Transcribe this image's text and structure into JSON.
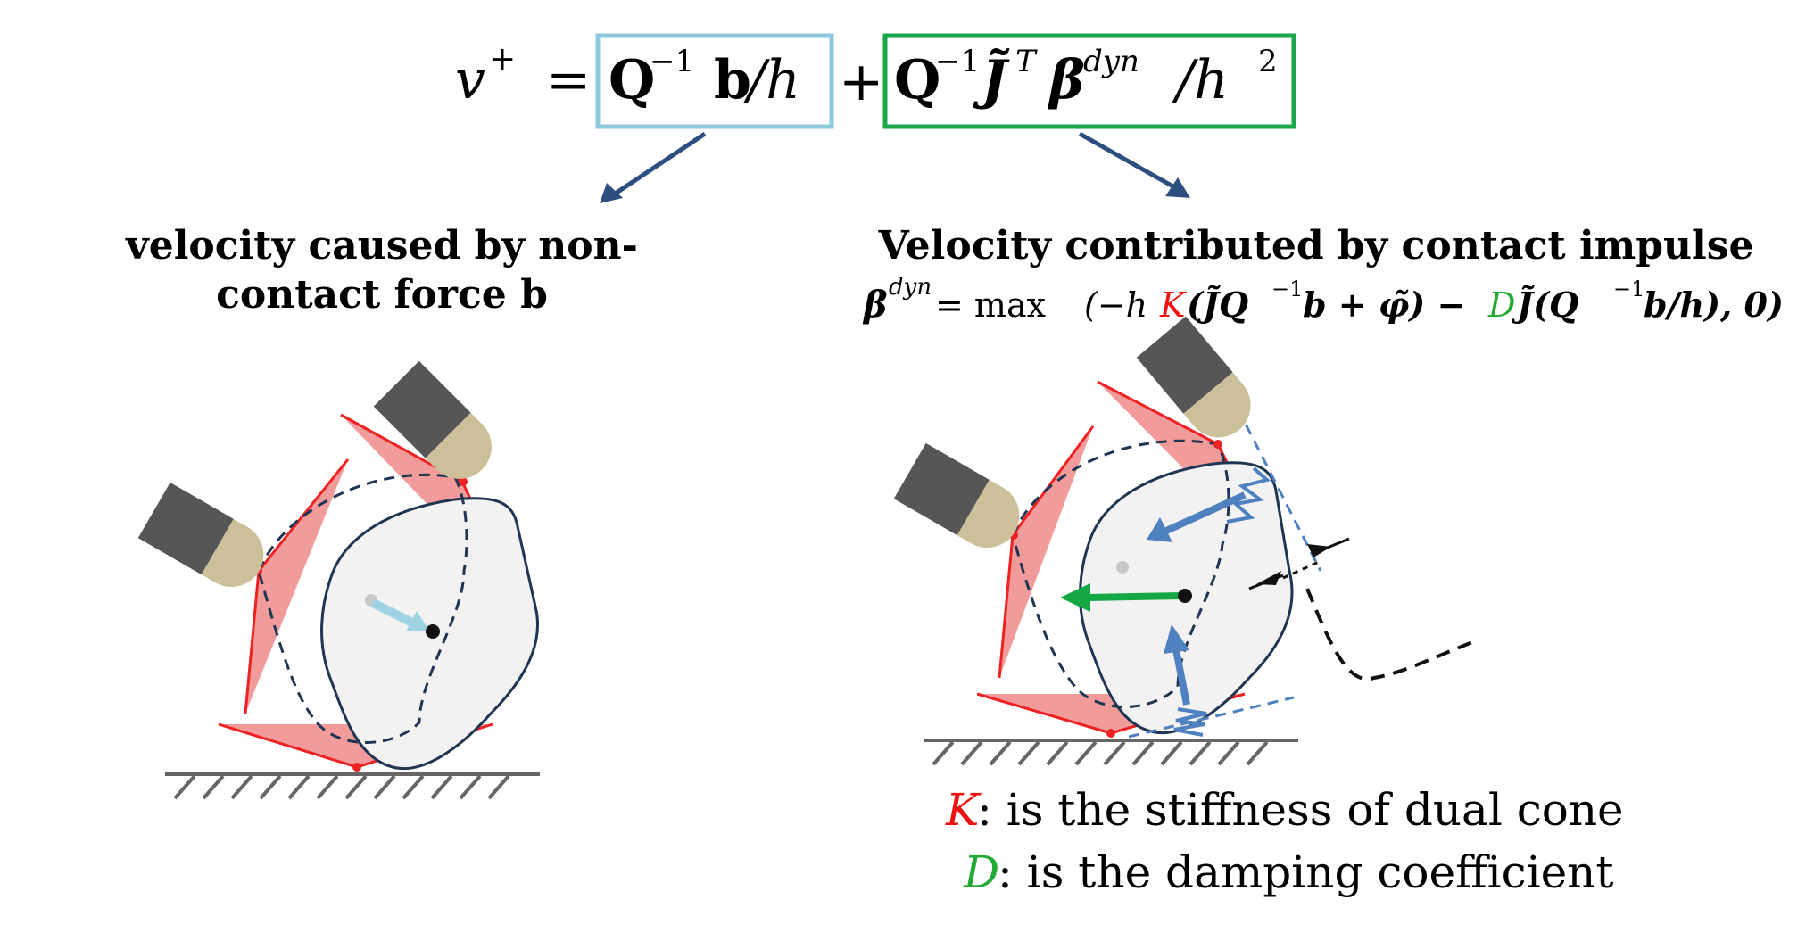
{
  "equation": {
    "lhs": "v",
    "lhs_sup": "+",
    "eq": "=",
    "box1": {
      "main": "Q",
      "sup": "−1",
      "b": "b",
      "rest": "/h"
    },
    "plus": "+",
    "box2": {
      "q": "Q",
      "qsup": "−1",
      "j": "J̃",
      "jsup": "T",
      "beta": "β",
      "betasup": "dyn",
      "rest": "/h",
      "restsup": "2"
    }
  },
  "left_caption": {
    "line1": "velocity caused by non-",
    "line2": "contact force b"
  },
  "right_caption": {
    "title": "Velocity contributed by contact impulse",
    "formula": {
      "beta": "β",
      "beta_sup": "dyn",
      "eq": "= max",
      "part1": "(−h",
      "K": "K",
      "part2": "(J̃Q",
      "sup1": "−1",
      "part3": "b + φ̃) − ",
      "D": "D",
      "part4": "J̃(Q",
      "sup2": "−1",
      "part5": "b/h), 0)"
    }
  },
  "legend": {
    "k_symbol": "K",
    "k_text": ":  is the stiffness of dual cone",
    "d_symbol": "D",
    "d_text": ":  is the damping coefficient"
  },
  "colors": {
    "box1": "#8ec9de",
    "box2": "#1aa64a",
    "arrow": "#2c4f7f",
    "cone_fill": "#f08a8a",
    "cone_line": "#ee2222",
    "gripper": "#565656",
    "gripper_tip": "#cbc09a",
    "object_line": "#1f3552",
    "object_fill": "#f2f2f2",
    "light_arrow": "#9ed3e3",
    "blue_arrow": "#4f80c0",
    "green_arrow": "#14a845",
    "K_color": "#ee1111",
    "D_color": "#22aa33"
  }
}
